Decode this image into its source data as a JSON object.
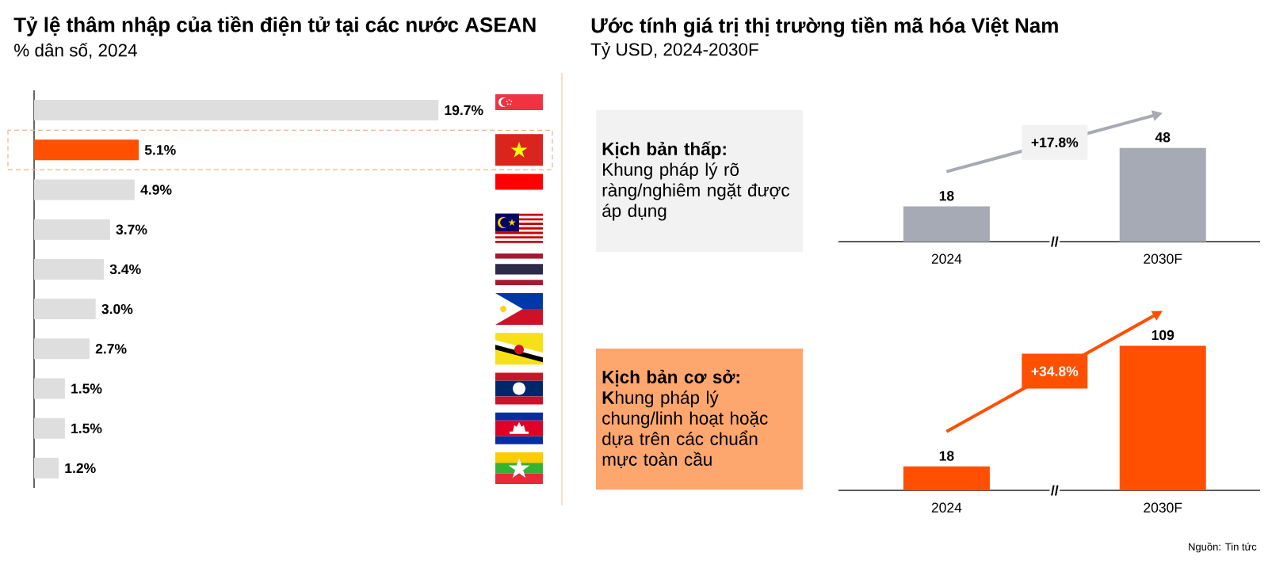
{
  "chart_data": [
    {
      "type": "bar",
      "orientation": "horizontal",
      "title": "Tỷ lệ thâm nhập của tiền điện tử tại các nước ASEAN",
      "subtitle": "% dân số, 2024",
      "categories": [
        null,
        null,
        null,
        null,
        null,
        null,
        null,
        null,
        null,
        null
      ],
      "values": [
        19.7,
        5.1,
        4.9,
        3.7,
        3.4,
        3.0,
        2.7,
        1.5,
        1.5,
        1.2
      ],
      "colors": [
        "#dedede",
        "#fe5000",
        "#dedede",
        "#dedede",
        "#dedede",
        "#dedede",
        "#dedede",
        "#dedede",
        "#dedede",
        "#dedede"
      ],
      "value_labels": [
        "19.7%",
        "5.1%",
        "4.9%",
        "3.7%",
        "3.4%",
        "3.0%",
        "2.7%",
        "1.5%",
        "1.5%",
        "1.2%"
      ],
      "tick_labels": false
    },
    {
      "type": "bar",
      "title": "Ước tính giá trị thị trường tiền mã hóa Việt Nam",
      "subtitle": "Tỷ USD, 2024-2030F",
      "categories": [
        "2024",
        "2030F"
      ],
      "values": [
        18,
        48
      ],
      "color": "#a6aab5",
      "data_labels": true,
      "tick_labels": "x",
      "annotations": [
        "Kịch bản thấp:",
        "Khung pháp lý rõ ràng/nghiêm ngặt được áp dụng",
        "+17.8%",
        "//"
      ]
    },
    {
      "type": "bar",
      "categories": [
        "2024",
        "2030F"
      ],
      "values": [
        18,
        109
      ],
      "color": "#fe5000",
      "data_labels": true,
      "tick_labels": "x",
      "annotations": [
        "Kịch bản cơ sở:",
        "**K**hung pháp lý chung/linh hoạt hoặc dựa trên các chuẩn mực toàn cầu",
        "+34.8%",
        "//",
        "Nguồn: Tin tức"
      ]
    }
  ]
}
